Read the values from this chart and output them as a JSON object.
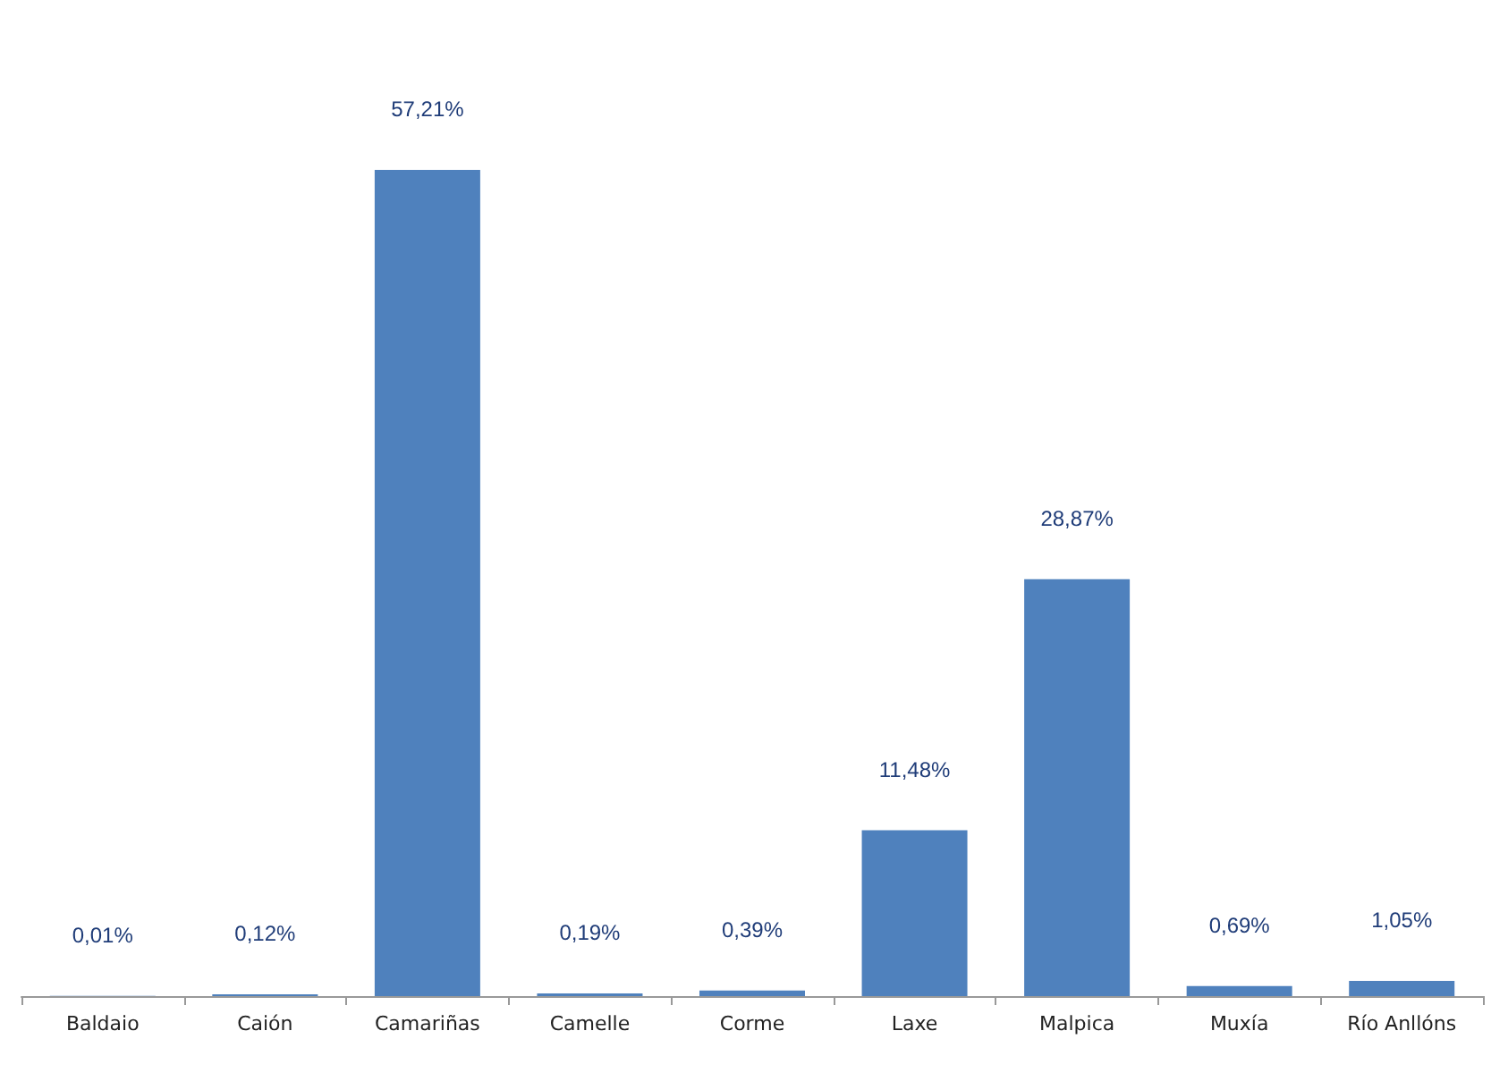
{
  "chart_data": {
    "type": "bar",
    "categories": [
      "Baldaio",
      "Caión",
      "Camariñas",
      "Camelle",
      "Corme",
      "Laxe",
      "Malpica",
      "Muxía",
      "Río Anllóns"
    ],
    "values": [
      0.01,
      0.12,
      57.21,
      0.19,
      0.39,
      11.48,
      28.87,
      0.69,
      1.05
    ],
    "value_labels": [
      "0,01%",
      "0,12%",
      "57,21%",
      "0,19%",
      "0,39%",
      "11,48%",
      "28,87%",
      "0,69%",
      "1,05%"
    ],
    "color": "#4f81bd"
  }
}
